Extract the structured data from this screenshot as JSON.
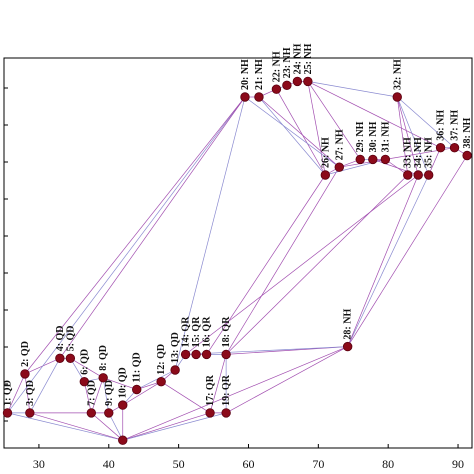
{
  "chart_data": {
    "type": "scatter",
    "title": "",
    "xlabel": "",
    "ylabel": "",
    "xlim": [
      25,
      92
    ],
    "ylim": [
      0,
      100
    ],
    "grid": false,
    "x_ticks": [
      30,
      40,
      50,
      60,
      70,
      80,
      90
    ],
    "x_tick_labels": [
      "30",
      "40",
      "50",
      "60",
      "70",
      "80",
      "90"
    ],
    "nodes": [
      {
        "label": "1: QD",
        "x": 25.5,
        "y": 9
      },
      {
        "label": "2: QD",
        "x": 28.0,
        "y": 19
      },
      {
        "label": "3: QD",
        "x": 28.7,
        "y": 9
      },
      {
        "label": "4: QD",
        "x": 33.0,
        "y": 23
      },
      {
        "label": "5: QD",
        "x": 34.5,
        "y": 23
      },
      {
        "label": "6: QD",
        "x": 36.5,
        "y": 17
      },
      {
        "label": "7: QD",
        "x": 37.5,
        "y": 9
      },
      {
        "label": "8: QD",
        "x": 39.2,
        "y": 18
      },
      {
        "label": "9: QD",
        "x": 40.0,
        "y": 9
      },
      {
        "label": "10: QD",
        "x": 42.0,
        "y": 11
      },
      {
        "label": "11: QD",
        "x": 44.0,
        "y": 15
      },
      {
        "label": "12: QD",
        "x": 47.5,
        "y": 17
      },
      {
        "label": "13: QD",
        "x": 49.5,
        "y": 20
      },
      {
        "label": "14: QR",
        "x": 51.0,
        "y": 24
      },
      {
        "label": "15: QR",
        "x": 52.5,
        "y": 24
      },
      {
        "label": "16: QR",
        "x": 54.0,
        "y": 24
      },
      {
        "label": "17: QR",
        "x": 54.5,
        "y": 9
      },
      {
        "label": "18: QR",
        "x": 56.8,
        "y": 24
      },
      {
        "label": "19: QR",
        "x": 56.8,
        "y": 9
      },
      {
        "label": "20: NH",
        "x": 59.5,
        "y": 90
      },
      {
        "label": "21: NH",
        "x": 61.5,
        "y": 90
      },
      {
        "label": "22: NH",
        "x": 64.0,
        "y": 92
      },
      {
        "label": "23: NH",
        "x": 65.5,
        "y": 93
      },
      {
        "label": "24: NH",
        "x": 67.0,
        "y": 94
      },
      {
        "label": "25: NH",
        "x": 68.5,
        "y": 94
      },
      {
        "label": "26: NH",
        "x": 71.0,
        "y": 70
      },
      {
        "label": "27: NH",
        "x": 73.0,
        "y": 72
      },
      {
        "label": "28: NH",
        "x": 74.2,
        "y": 26
      },
      {
        "label": "29: NH",
        "x": 76.0,
        "y": 74
      },
      {
        "label": "30: NH",
        "x": 77.8,
        "y": 74
      },
      {
        "label": "31: NH",
        "x": 79.6,
        "y": 74
      },
      {
        "label": "32: NH",
        "x": 81.3,
        "y": 90
      },
      {
        "label": "33: NH",
        "x": 82.8,
        "y": 70
      },
      {
        "label": "34: NH",
        "x": 84.3,
        "y": 70
      },
      {
        "label": "35: NH",
        "x": 85.8,
        "y": 70
      },
      {
        "label": "36: NH",
        "x": 87.5,
        "y": 77
      },
      {
        "label": "37: NH",
        "x": 89.5,
        "y": 77
      },
      {
        "label": "38: NH",
        "x": 91.3,
        "y": 75
      },
      {
        "label": "",
        "x": 42.0,
        "y": 2
      }
    ],
    "edges": [
      [
        38,
        0
      ],
      [
        38,
        2
      ],
      [
        38,
        6
      ],
      [
        38,
        8
      ],
      [
        38,
        9
      ],
      [
        38,
        16
      ],
      [
        38,
        18
      ],
      [
        38,
        27
      ],
      [
        0,
        1
      ],
      [
        0,
        2
      ],
      [
        1,
        2
      ],
      [
        1,
        3
      ],
      [
        2,
        3
      ],
      [
        2,
        6
      ],
      [
        3,
        4
      ],
      [
        4,
        5
      ],
      [
        4,
        7
      ],
      [
        5,
        6
      ],
      [
        5,
        7
      ],
      [
        6,
        7
      ],
      [
        6,
        8
      ],
      [
        7,
        8
      ],
      [
        7,
        10
      ],
      [
        8,
        9
      ],
      [
        9,
        10
      ],
      [
        9,
        11
      ],
      [
        10,
        11
      ],
      [
        10,
        12
      ],
      [
        11,
        12
      ],
      [
        11,
        16
      ],
      [
        12,
        13
      ],
      [
        13,
        14
      ],
      [
        14,
        15
      ],
      [
        15,
        17
      ],
      [
        16,
        17
      ],
      [
        16,
        18
      ],
      [
        17,
        18
      ],
      [
        17,
        27
      ],
      [
        18,
        27
      ],
      [
        13,
        27
      ],
      [
        15,
        25
      ],
      [
        17,
        26
      ],
      [
        0,
        19
      ],
      [
        1,
        19
      ],
      [
        3,
        19
      ],
      [
        12,
        19
      ],
      [
        19,
        20
      ],
      [
        20,
        21
      ],
      [
        21,
        22
      ],
      [
        22,
        23
      ],
      [
        23,
        24
      ],
      [
        20,
        25
      ],
      [
        21,
        25
      ],
      [
        24,
        25
      ],
      [
        24,
        31
      ],
      [
        24,
        28
      ],
      [
        24,
        35
      ],
      [
        31,
        36
      ],
      [
        31,
        32
      ],
      [
        31,
        33
      ],
      [
        31,
        34
      ],
      [
        25,
        26
      ],
      [
        26,
        28
      ],
      [
        28,
        29
      ],
      [
        29,
        30
      ],
      [
        30,
        32
      ],
      [
        32,
        33
      ],
      [
        33,
        34
      ],
      [
        34,
        35
      ],
      [
        35,
        36
      ],
      [
        36,
        37
      ],
      [
        27,
        37
      ],
      [
        27,
        34
      ],
      [
        27,
        33
      ],
      [
        13,
        33
      ],
      [
        19,
        26
      ],
      [
        20,
        26
      ],
      [
        17,
        32
      ],
      [
        25,
        30
      ],
      [
        29,
        33
      ],
      [
        26,
        36
      ]
    ]
  }
}
